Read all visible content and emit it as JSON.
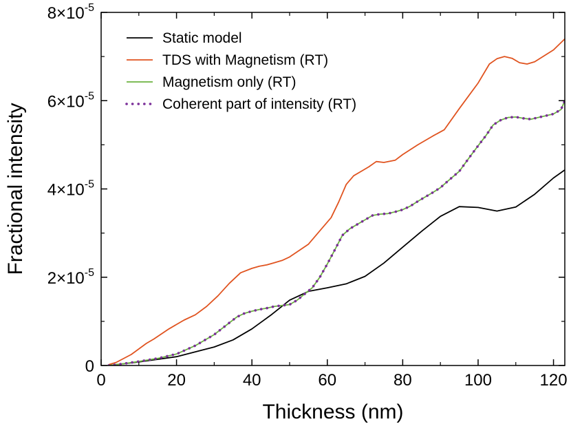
{
  "chart_data": {
    "type": "line",
    "title": "",
    "xlabel": "Thickness (nm)",
    "ylabel": "Fractional intensity",
    "xlim": [
      0,
      123
    ],
    "ylim": [
      0,
      8e-05
    ],
    "x_ticks": [
      0,
      20,
      40,
      60,
      80,
      100,
      120
    ],
    "x_tick_labels": [
      "0",
      "20",
      "40",
      "60",
      "80",
      "100",
      "120"
    ],
    "y_ticks": [
      0,
      2e-05,
      4e-05,
      6e-05,
      8e-05
    ],
    "y_tick_labels": [
      {
        "mantissa": "0",
        "exponent": ""
      },
      {
        "mantissa": "2×10",
        "exponent": "-5"
      },
      {
        "mantissa": "4×10",
        "exponent": "-5"
      },
      {
        "mantissa": "6×10",
        "exponent": "-5"
      },
      {
        "mantissa": "8×10",
        "exponent": "-5"
      }
    ],
    "grid": false,
    "legend_position": "top-left",
    "series": [
      {
        "name": "Static model",
        "color": "#000000",
        "style": "solid",
        "x": [
          2,
          10,
          20,
          30,
          35,
          40,
          45,
          50,
          55,
          60,
          65,
          70,
          75,
          80,
          85,
          90,
          95,
          100,
          105,
          110,
          115,
          120,
          123
        ],
        "y": [
          0,
          8e-07,
          2e-06,
          4.2e-06,
          5.8e-06,
          8.3e-06,
          1.14e-05,
          1.48e-05,
          1.68e-05,
          1.76e-05,
          1.85e-05,
          2.02e-05,
          2.32e-05,
          2.68e-05,
          3.04e-05,
          3.38e-05,
          3.6e-05,
          3.58e-05,
          3.5e-05,
          3.59e-05,
          3.88e-05,
          4.25e-05,
          4.43e-05
        ]
      },
      {
        "name": "TDS with Magnetism (RT)",
        "color": "#e0531f",
        "style": "solid",
        "x": [
          2,
          4,
          8,
          12,
          14,
          18,
          20,
          22,
          25,
          28,
          31,
          34,
          37,
          40,
          42,
          44,
          46,
          48,
          50,
          55,
          58,
          61,
          63,
          65,
          67,
          69,
          71,
          73,
          75,
          78,
          80,
          84,
          88,
          91,
          95,
          100,
          103,
          105,
          107,
          109,
          111,
          113,
          115,
          120,
          123
        ],
        "y": [
          2e-07,
          7e-07,
          2.5e-06,
          5e-06,
          6e-06,
          8.3e-06,
          9.3e-06,
          1.03e-05,
          1.15e-05,
          1.34e-05,
          1.58e-05,
          1.86e-05,
          2.1e-05,
          2.2e-05,
          2.25e-05,
          2.28e-05,
          2.33e-05,
          2.38e-05,
          2.46e-05,
          2.75e-05,
          3.05e-05,
          3.35e-05,
          3.7e-05,
          4.1e-05,
          4.3e-05,
          4.4e-05,
          4.5e-05,
          4.62e-05,
          4.6e-05,
          4.65e-05,
          4.78e-05,
          5e-05,
          5.2e-05,
          5.34e-05,
          5.82e-05,
          6.4e-05,
          6.83e-05,
          6.95e-05,
          7e-05,
          6.96e-05,
          6.86e-05,
          6.83e-05,
          6.88e-05,
          7.15e-05,
          7.4e-05
        ]
      },
      {
        "name": "Magnetism only (RT)",
        "color": "#6cb33f",
        "style": "solid",
        "x": [
          2,
          5,
          10,
          15,
          20,
          25,
          30,
          33,
          36,
          38,
          40,
          42,
          44,
          46,
          48,
          50,
          52,
          54,
          56,
          58,
          60,
          62,
          64,
          66,
          68,
          70,
          72,
          74,
          76,
          78,
          80,
          82,
          84,
          86,
          88,
          90,
          92,
          95,
          98,
          100,
          102,
          104,
          106,
          108,
          110,
          112,
          114,
          116,
          118,
          120,
          122,
          123
        ],
        "y": [
          0,
          3e-07,
          9e-07,
          1.6e-06,
          2.6e-06,
          4.5e-06,
          7e-06,
          9e-06,
          1.1e-05,
          1.18e-05,
          1.23e-05,
          1.27e-05,
          1.3e-05,
          1.34e-05,
          1.36e-05,
          1.38e-05,
          1.48e-05,
          1.62e-05,
          1.76e-05,
          2e-05,
          2.3e-05,
          2.62e-05,
          2.95e-05,
          3.1e-05,
          3.2e-05,
          3.3e-05,
          3.4e-05,
          3.43e-05,
          3.44e-05,
          3.48e-05,
          3.53e-05,
          3.61e-05,
          3.72e-05,
          3.82e-05,
          3.92e-05,
          4.03e-05,
          4.18e-05,
          4.4e-05,
          4.75e-05,
          4.98e-05,
          5.2e-05,
          5.45e-05,
          5.56e-05,
          5.62e-05,
          5.63e-05,
          5.6e-05,
          5.58e-05,
          5.62e-05,
          5.66e-05,
          5.7e-05,
          5.8e-05,
          6e-05
        ]
      },
      {
        "name": "Coherent part of intensity (RT)",
        "color": "#7b2f99",
        "style": "dotted",
        "x": [
          2,
          5,
          10,
          15,
          20,
          25,
          30,
          33,
          36,
          38,
          40,
          42,
          44,
          46,
          48,
          50,
          52,
          54,
          56,
          58,
          60,
          62,
          64,
          66,
          68,
          70,
          72,
          74,
          76,
          78,
          80,
          82,
          84,
          86,
          88,
          90,
          92,
          95,
          98,
          100,
          102,
          104,
          106,
          108,
          110,
          112,
          114,
          116,
          118,
          120,
          122,
          123
        ],
        "y": [
          0,
          3e-07,
          9e-07,
          1.6e-06,
          2.6e-06,
          4.5e-06,
          7e-06,
          9e-06,
          1.1e-05,
          1.18e-05,
          1.23e-05,
          1.27e-05,
          1.3e-05,
          1.34e-05,
          1.36e-05,
          1.38e-05,
          1.48e-05,
          1.62e-05,
          1.76e-05,
          2e-05,
          2.3e-05,
          2.62e-05,
          2.95e-05,
          3.1e-05,
          3.2e-05,
          3.3e-05,
          3.4e-05,
          3.43e-05,
          3.44e-05,
          3.48e-05,
          3.53e-05,
          3.61e-05,
          3.72e-05,
          3.82e-05,
          3.92e-05,
          4.03e-05,
          4.18e-05,
          4.4e-05,
          4.75e-05,
          4.98e-05,
          5.2e-05,
          5.45e-05,
          5.56e-05,
          5.62e-05,
          5.63e-05,
          5.6e-05,
          5.58e-05,
          5.62e-05,
          5.66e-05,
          5.7e-05,
          5.8e-05,
          6e-05
        ]
      }
    ]
  }
}
